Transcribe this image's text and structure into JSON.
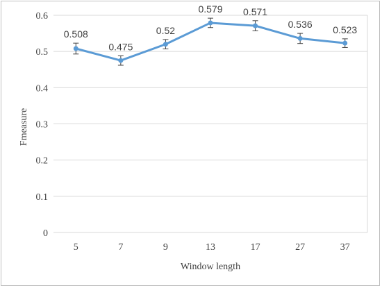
{
  "chart_data": {
    "type": "line",
    "title": "",
    "xlabel": "Window length",
    "ylabel": "Fmeasure",
    "categories": [
      "5",
      "7",
      "9",
      "13",
      "17",
      "27",
      "37"
    ],
    "series": [
      {
        "values": [
          0.508,
          0.475,
          0.52,
          0.579,
          0.571,
          0.536,
          0.523
        ],
        "labels": [
          "0.508",
          "0.475",
          "0.52",
          "0.579",
          "0.571",
          "0.536",
          "0.523"
        ],
        "error": [
          0.015,
          0.013,
          0.013,
          0.013,
          0.014,
          0.014,
          0.012
        ],
        "color": "#5b9bd5"
      }
    ],
    "yticks": [
      "0",
      "0.1",
      "0.2",
      "0.3",
      "0.4",
      "0.5",
      "0.6"
    ],
    "ylim": [
      0,
      0.6
    ],
    "grid": "horizontal",
    "legend": "none",
    "colors": {
      "line": "#5b9bd5",
      "grid": "#d9d9d9",
      "error_bar": "#404040",
      "text": "#404040"
    }
  }
}
